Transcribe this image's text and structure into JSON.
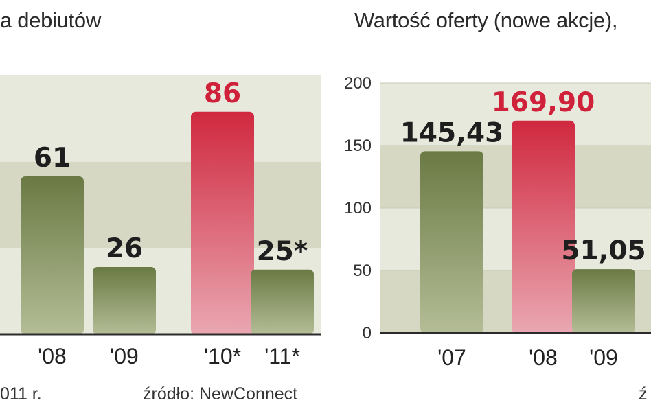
{
  "colors": {
    "green_bar": "#6a7a44",
    "green_bar_light": "#b4bd96",
    "red_bar": "#d0283f",
    "red_bar_light": "#e9a7b1",
    "red_label": "#d0213b",
    "dark_label": "#1e1e1e",
    "band_light": "#e8e9dd",
    "band_dark": "#d6d8c4"
  },
  "left_chart": {
    "title_fragment": "a debiutów",
    "footnote_fragment": "011 r.",
    "source": "źródło: NewConnect"
  },
  "right_chart": {
    "title_fragment": "Wartość oferty (nowe akcje),",
    "source_fragment": "ź"
  },
  "chart_data": [
    {
      "type": "bar",
      "title": "a debiutów",
      "categories": [
        "'08",
        "'09",
        "'10*",
        "'11*"
      ],
      "values": [
        61,
        26,
        86,
        25
      ],
      "value_labels": [
        "61",
        "26",
        "86",
        "25*"
      ],
      "highlight": [
        "green",
        "green",
        "red",
        "green"
      ],
      "ylim": [
        0,
        100
      ],
      "grid": "horizontal bands",
      "legend": "none"
    },
    {
      "type": "bar",
      "title": "Wartość oferty (nowe akcje),",
      "categories": [
        "'07",
        "'08",
        "'09"
      ],
      "values": [
        145.43,
        169.9,
        51.05
      ],
      "value_labels": [
        "145,43",
        "169,90",
        "51,05"
      ],
      "highlight": [
        "green",
        "red",
        "green"
      ],
      "ylim": [
        0,
        200
      ],
      "yticks": [
        "0",
        "50",
        "100",
        "150",
        "200"
      ],
      "grid": "horizontal bands",
      "legend": "none"
    }
  ]
}
